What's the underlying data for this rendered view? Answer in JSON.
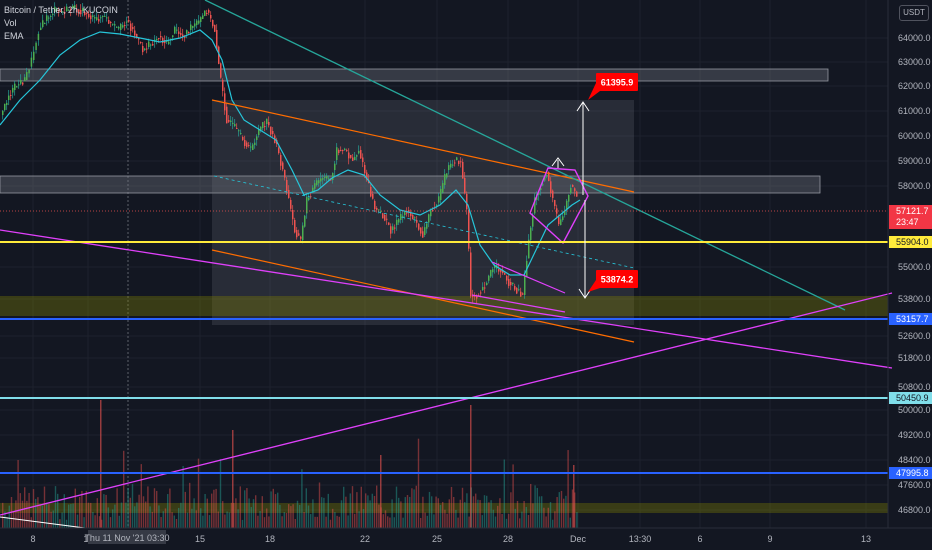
{
  "header": {
    "symbol": "Bitcoin / Tether, 2h, KUCOIN",
    "vol_label": "Vol",
    "ema_label": "EMA"
  },
  "currency_button": "USDT",
  "chart_data": {
    "type": "candlestick",
    "y_ticks": [
      64000,
      63000,
      62000,
      61000,
      60000,
      59000,
      58000,
      55000,
      53800,
      52600,
      51800,
      50800,
      50000,
      49200,
      48400,
      47600,
      46800
    ],
    "x_ticks": [
      "8",
      "11",
      "15",
      "18",
      "22",
      "25",
      "28",
      "Dec",
      "13:30",
      "6",
      "9",
      "13"
    ],
    "crosshair_date": "Thu 11 Nov '21  03:30",
    "price_labels": [
      {
        "value": "57121.7",
        "sub": "23:47",
        "color": "#f23645"
      },
      {
        "value": "55904.0",
        "color": "#ffeb3b"
      },
      {
        "value": "53157.7",
        "color": "#2962ff"
      },
      {
        "value": "50450.9",
        "color": "#80deea"
      },
      {
        "value": "47995.8",
        "color": "#2962ff"
      }
    ],
    "annotations": [
      {
        "text": "61395.9",
        "color": "#ff0000"
      },
      {
        "text": "53874.2",
        "color": "#ff0000"
      }
    ],
    "horizontal_levels": [
      55904.0,
      53157.7,
      50450.9,
      47995.8
    ],
    "colors": {
      "up": "#26a69a",
      "up_body": "#4caf50",
      "down": "#ef5350",
      "ema": "#26c6da",
      "channel": "#ff6d00",
      "magenta": "#e040fb",
      "yellow": "#ffeb3b",
      "blue": "#2962ff",
      "cyan_line": "#26a69a"
    }
  }
}
